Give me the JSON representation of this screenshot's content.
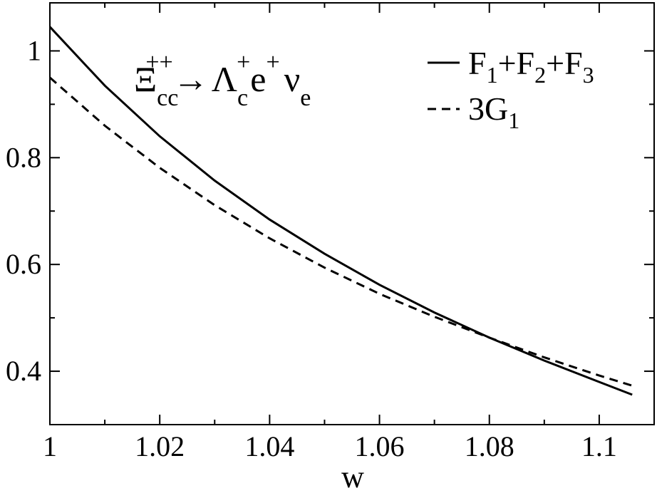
{
  "chart_data": {
    "type": "line",
    "title": "",
    "xlabel": "w",
    "ylabel": "",
    "xlim": [
      1.0,
      1.11
    ],
    "ylim": [
      0.3,
      1.09
    ],
    "x_ticks": [
      1.0,
      1.02,
      1.04,
      1.06,
      1.08,
      1.1
    ],
    "x_tick_labels": [
      "1",
      "1.02",
      "1.04",
      "1.06",
      "1.08",
      "1.1"
    ],
    "y_ticks": [
      0.4,
      0.6,
      0.8,
      1.0
    ],
    "y_tick_labels": [
      "0.4",
      "0.6",
      "0.8",
      "1"
    ],
    "grid": false,
    "legend_position": "top-right",
    "annotation": {
      "base1": "Ξ",
      "sub1": "cc",
      "sup1": "++",
      "arrow": "→",
      "base2": "Λ",
      "sub2": "c",
      "sup2": "+",
      "base3": "e",
      "sup3": "+",
      "base4": "ν",
      "sub4": "e"
    },
    "series": [
      {
        "name": "F1+F2+F3",
        "legend_parts": [
          "F",
          "1",
          "+F",
          "2",
          "+F",
          "3"
        ],
        "style": "solid",
        "color": "#000000",
        "x": [
          1.0,
          1.01,
          1.02,
          1.03,
          1.04,
          1.05,
          1.06,
          1.07,
          1.08,
          1.09,
          1.1,
          1.106
        ],
        "y": [
          1.045,
          0.935,
          0.84,
          0.757,
          0.684,
          0.62,
          0.562,
          0.51,
          0.463,
          0.42,
          0.38,
          0.356
        ]
      },
      {
        "name": "3G1",
        "legend_parts": [
          "3G",
          "1"
        ],
        "style": "dashed",
        "color": "#000000",
        "x": [
          1.0,
          1.01,
          1.02,
          1.03,
          1.04,
          1.05,
          1.06,
          1.07,
          1.08,
          1.09,
          1.1,
          1.106
        ],
        "y": [
          0.95,
          0.86,
          0.781,
          0.711,
          0.649,
          0.594,
          0.545,
          0.502,
          0.463,
          0.426,
          0.392,
          0.373
        ]
      }
    ]
  }
}
